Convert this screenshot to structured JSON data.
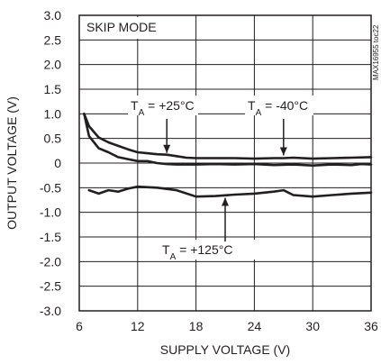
{
  "chart_data": {
    "type": "line",
    "title": "",
    "plot_label": "SKIP MODE",
    "side_id": "MAX16955 toc22",
    "xlabel": "SUPPLY VOLTAGE (V)",
    "ylabel": "OUTPUT VOLTAGE (V)",
    "xlim": [
      6,
      36
    ],
    "ylim": [
      -3.0,
      3.0
    ],
    "x_ticks": [
      6,
      12,
      18,
      24,
      30,
      36
    ],
    "x_tick_labels": [
      "6",
      "12",
      "18",
      "24",
      "30",
      "36"
    ],
    "y_ticks": [
      3.0,
      2.5,
      2.0,
      1.5,
      1.0,
      0.5,
      0,
      -0.5,
      -1.0,
      -1.5,
      -2.0,
      -2.5,
      -3.0
    ],
    "y_tick_labels": [
      "3.0",
      "2.5",
      "2.0",
      "1.5",
      "1.0",
      "0.5",
      "0",
      "-0.5",
      "-1.0",
      "-1.5",
      "-2.0",
      "-2.5",
      "-3.0"
    ],
    "grid": true,
    "series": [
      {
        "name": "T_A = -40°C",
        "x": [
          6.5,
          7,
          8,
          9,
          10,
          11,
          12,
          13,
          14,
          15,
          16,
          17,
          18,
          20,
          22,
          24,
          26,
          27,
          28,
          30,
          32,
          34,
          36
        ],
        "y": [
          1.0,
          0.75,
          0.52,
          0.42,
          0.35,
          0.28,
          0.22,
          0.2,
          0.18,
          0.17,
          0.14,
          0.11,
          0.1,
          0.1,
          0.1,
          0.09,
          0.1,
          0.1,
          0.11,
          0.09,
          0.1,
          0.11,
          0.12
        ]
      },
      {
        "name": "T_A = +25°C",
        "x": [
          6.5,
          7,
          8,
          9,
          10,
          11,
          12,
          13,
          14,
          15,
          16,
          18,
          20,
          22,
          24,
          26,
          28,
          30,
          32,
          34,
          35,
          36
        ],
        "y": [
          1.0,
          0.55,
          0.3,
          0.22,
          0.12,
          0.08,
          0.04,
          0.04,
          0.0,
          -0.02,
          -0.03,
          -0.03,
          -0.02,
          -0.03,
          -0.02,
          -0.04,
          -0.03,
          -0.05,
          -0.03,
          -0.04,
          -0.02,
          -0.03
        ]
      },
      {
        "name": "T_A = +125°C",
        "x": [
          7,
          8,
          9,
          10,
          11,
          12,
          14,
          16,
          18,
          20,
          22,
          24,
          26,
          27,
          28,
          30,
          32,
          34,
          36
        ],
        "y": [
          -0.55,
          -0.62,
          -0.55,
          -0.58,
          -0.52,
          -0.48,
          -0.5,
          -0.55,
          -0.68,
          -0.67,
          -0.64,
          -0.62,
          -0.58,
          -0.55,
          -0.65,
          -0.68,
          -0.65,
          -0.62,
          -0.6
        ]
      }
    ],
    "annotations": [
      {
        "label": "T_A = +25°C",
        "main": "T",
        "sub": "A",
        "rest": " = +25°C",
        "target_x": 15,
        "target_y": 0.17
      },
      {
        "label": "T_A = -40°C",
        "main": "T",
        "sub": "A",
        "rest": " = -40°C",
        "target_x": 27,
        "target_y": 0.1
      },
      {
        "label": "T_A = +125°C",
        "main": "T",
        "sub": "A",
        "rest": " = +125°C",
        "target_x": 21,
        "target_y": -0.65
      }
    ],
    "line_color": "#231f20"
  }
}
